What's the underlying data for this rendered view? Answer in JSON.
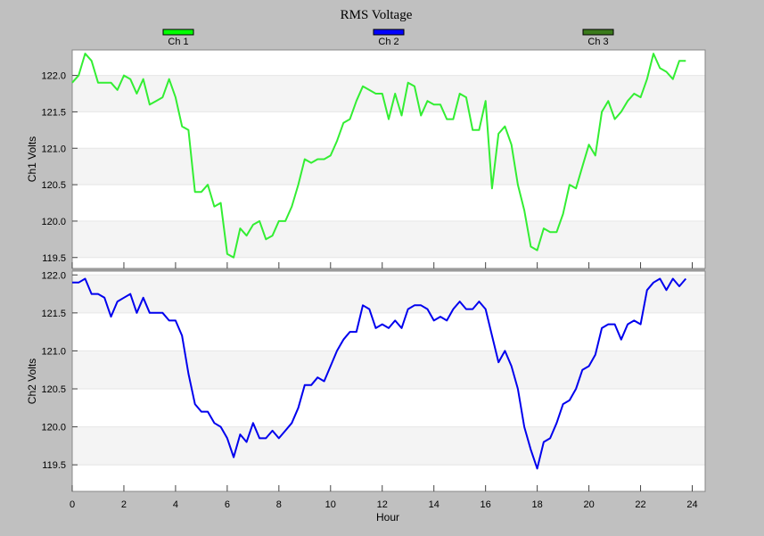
{
  "chart_data": {
    "type": "line",
    "title": "RMS Voltage",
    "xlabel": "Hour",
    "xlim": [
      0,
      24.5
    ],
    "xticks": [
      0,
      2,
      4,
      6,
      8,
      10,
      12,
      14,
      16,
      18,
      20,
      22,
      24
    ],
    "legend": [
      {
        "label": "Ch 1",
        "color": "#00ff00"
      },
      {
        "label": "Ch 2",
        "color": "#0000ff"
      },
      {
        "label": "Ch 3",
        "color": "#3a7a1a"
      }
    ],
    "panels": [
      {
        "ylabel": "Ch1 Volts",
        "ylim": [
          119.35,
          122.35
        ],
        "yticks": [
          119.5,
          120.0,
          120.5,
          121.0,
          121.5,
          122.0
        ],
        "series": [
          {
            "name": "Ch 1",
            "color": "#33ee33",
            "x": [
              0,
              0.25,
              0.5,
              0.75,
              1,
              1.25,
              1.5,
              1.75,
              2,
              2.25,
              2.5,
              2.75,
              3,
              3.25,
              3.5,
              3.75,
              4,
              4.25,
              4.5,
              4.75,
              5,
              5.25,
              5.5,
              5.75,
              6,
              6.25,
              6.5,
              6.75,
              7,
              7.25,
              7.5,
              7.75,
              8,
              8.25,
              8.5,
              8.75,
              9,
              9.25,
              9.5,
              9.75,
              10,
              10.25,
              10.5,
              10.75,
              11,
              11.25,
              11.5,
              11.75,
              12,
              12.25,
              12.5,
              12.75,
              13,
              13.25,
              13.5,
              13.75,
              14,
              14.25,
              14.5,
              14.75,
              15,
              15.25,
              15.5,
              15.75,
              16,
              16.25,
              16.5,
              16.75,
              17,
              17.25,
              17.5,
              17.75,
              18,
              18.25,
              18.5,
              18.75,
              19,
              19.25,
              19.5,
              19.75,
              20,
              20.25,
              20.5,
              20.75,
              21,
              21.25,
              21.5,
              21.75,
              22,
              22.25,
              22.5,
              22.75,
              23,
              23.25,
              23.5,
              23.75
            ],
            "values": [
              121.9,
              122.0,
              122.3,
              122.2,
              121.9,
              121.9,
              121.9,
              121.8,
              122.0,
              121.95,
              121.75,
              121.95,
              121.6,
              121.65,
              121.7,
              121.95,
              121.7,
              121.3,
              121.25,
              120.4,
              120.4,
              120.5,
              120.2,
              120.25,
              119.55,
              119.5,
              119.9,
              119.8,
              119.95,
              120.0,
              119.75,
              119.8,
              120.0,
              120.0,
              120.2,
              120.5,
              120.85,
              120.8,
              120.85,
              120.85,
              120.9,
              121.1,
              121.35,
              121.4,
              121.65,
              121.85,
              121.8,
              121.75,
              121.75,
              121.4,
              121.75,
              121.45,
              121.9,
              121.85,
              121.45,
              121.65,
              121.6,
              121.6,
              121.4,
              121.4,
              121.75,
              121.7,
              121.25,
              121.25,
              121.65,
              120.45,
              121.2,
              121.3,
              121.05,
              120.5,
              120.15,
              119.65,
              119.6,
              119.9,
              119.85,
              119.85,
              120.1,
              120.5,
              120.45,
              120.75,
              121.05,
              120.9,
              121.5,
              121.65,
              121.4,
              121.5,
              121.65,
              121.75,
              121.7,
              121.95,
              122.3,
              122.1,
              122.05,
              121.95,
              122.2,
              122.2
            ]
          }
        ]
      },
      {
        "ylabel": "Ch2 Volts",
        "ylim": [
          119.15,
          122.05
        ],
        "yticks": [
          119.5,
          120.0,
          120.5,
          121.0,
          121.5,
          122.0
        ],
        "series": [
          {
            "name": "Ch 2",
            "color": "#0000ee",
            "x": [
              0,
              0.25,
              0.5,
              0.75,
              1,
              1.25,
              1.5,
              1.75,
              2,
              2.25,
              2.5,
              2.75,
              3,
              3.25,
              3.5,
              3.75,
              4,
              4.25,
              4.5,
              4.75,
              5,
              5.25,
              5.5,
              5.75,
              6,
              6.25,
              6.5,
              6.75,
              7,
              7.25,
              7.5,
              7.75,
              8,
              8.25,
              8.5,
              8.75,
              9,
              9.25,
              9.5,
              9.75,
              10,
              10.25,
              10.5,
              10.75,
              11,
              11.25,
              11.5,
              11.75,
              12,
              12.25,
              12.5,
              12.75,
              13,
              13.25,
              13.5,
              13.75,
              14,
              14.25,
              14.5,
              14.75,
              15,
              15.25,
              15.5,
              15.75,
              16,
              16.25,
              16.5,
              16.75,
              17,
              17.25,
              17.5,
              17.75,
              18,
              18.25,
              18.5,
              18.75,
              19,
              19.25,
              19.5,
              19.75,
              20,
              20.25,
              20.5,
              20.75,
              21,
              21.25,
              21.5,
              21.75,
              22,
              22.25,
              22.5,
              22.75,
              23,
              23.25,
              23.5,
              23.75
            ],
            "values": [
              121.9,
              121.9,
              121.95,
              121.75,
              121.75,
              121.7,
              121.45,
              121.65,
              121.7,
              121.75,
              121.5,
              121.7,
              121.5,
              121.5,
              121.5,
              121.4,
              121.4,
              121.2,
              120.7,
              120.3,
              120.2,
              120.2,
              120.05,
              120.0,
              119.85,
              119.6,
              119.9,
              119.8,
              120.05,
              119.85,
              119.85,
              119.95,
              119.85,
              119.95,
              120.05,
              120.25,
              120.55,
              120.55,
              120.65,
              120.6,
              120.8,
              121.0,
              121.15,
              121.25,
              121.25,
              121.6,
              121.55,
              121.3,
              121.35,
              121.3,
              121.4,
              121.3,
              121.55,
              121.6,
              121.6,
              121.55,
              121.4,
              121.45,
              121.4,
              121.55,
              121.65,
              121.55,
              121.55,
              121.65,
              121.55,
              121.2,
              120.85,
              121.0,
              120.8,
              120.5,
              120.0,
              119.7,
              119.45,
              119.8,
              119.85,
              120.05,
              120.3,
              120.35,
              120.5,
              120.75,
              120.8,
              120.95,
              121.3,
              121.35,
              121.35,
              121.15,
              121.35,
              121.4,
              121.35,
              121.8,
              121.9,
              121.95,
              121.8,
              121.95,
              121.85,
              121.95
            ]
          }
        ]
      }
    ]
  }
}
